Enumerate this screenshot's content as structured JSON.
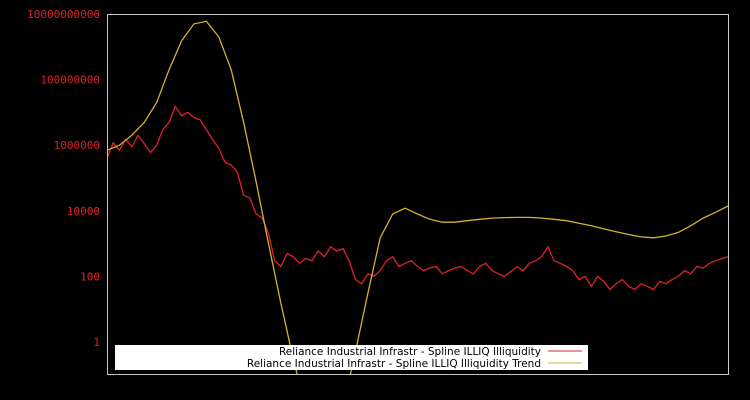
{
  "chart_data": {
    "type": "line",
    "title": "",
    "xlabel": "",
    "ylabel": "",
    "yscale": "log",
    "ylim": [
      0.3,
      10000000000
    ],
    "grid": false,
    "legend_position": "bottom-center-inside",
    "background": "#000000",
    "frame_color": "#c8c8c8",
    "yticks": [
      {
        "label": "10000000000",
        "value": 10000000000
      },
      {
        "label": "100000000",
        "value": 100000000
      },
      {
        "label": "1000000",
        "value": 1000000
      },
      {
        "label": "10000",
        "value": 10000
      },
      {
        "label": "100",
        "value": 100
      },
      {
        "label": "1",
        "value": 1
      }
    ],
    "series": [
      {
        "name": "Reliance Industrial Infrastr - Spline ILLIQ Illiquidity",
        "color": "#e0202a",
        "x_frac": [
          0.0,
          0.01,
          0.02,
          0.03,
          0.04,
          0.05,
          0.06,
          0.07,
          0.08,
          0.09,
          0.1,
          0.11,
          0.12,
          0.13,
          0.14,
          0.15,
          0.16,
          0.17,
          0.18,
          0.19,
          0.2,
          0.21,
          0.22,
          0.23,
          0.24,
          0.25,
          0.26,
          0.27,
          0.28,
          0.29,
          0.3,
          0.31,
          0.32,
          0.33,
          0.34,
          0.35,
          0.36,
          0.37,
          0.38,
          0.39,
          0.4,
          0.41,
          0.42,
          0.43,
          0.44,
          0.45,
          0.46,
          0.47,
          0.48,
          0.49,
          0.5,
          0.51,
          0.52,
          0.53,
          0.54,
          0.55,
          0.56,
          0.57,
          0.58,
          0.59,
          0.6,
          0.61,
          0.62,
          0.63,
          0.64,
          0.65,
          0.66,
          0.67,
          0.68,
          0.69,
          0.7,
          0.71,
          0.72,
          0.73,
          0.74,
          0.75,
          0.76,
          0.77,
          0.78,
          0.79,
          0.8,
          0.81,
          0.82,
          0.83,
          0.84,
          0.85,
          0.86,
          0.87,
          0.88,
          0.89,
          0.9,
          0.91,
          0.92,
          0.93,
          0.94,
          0.95,
          0.96,
          0.97,
          0.98,
          0.99,
          1.0
        ],
        "values": [
          400000,
          1200000,
          700000,
          1500000,
          900000,
          2000000,
          1100000,
          600000,
          1000000,
          3000000,
          5000000,
          15000000,
          8000000,
          10000000,
          7000000,
          6000000,
          3000000,
          1500000,
          800000,
          300000,
          250000,
          150000,
          30000,
          25000,
          8000,
          6000,
          2000,
          300,
          200,
          500,
          400,
          250,
          350,
          300,
          600,
          400,
          800,
          600,
          700,
          300,
          80,
          60,
          120,
          100,
          150,
          300,
          400,
          200,
          250,
          300,
          200,
          150,
          180,
          200,
          120,
          150,
          180,
          200,
          150,
          120,
          200,
          250,
          150,
          120,
          100,
          140,
          200,
          150,
          250,
          300,
          400,
          800,
          300,
          250,
          200,
          150,
          80,
          100,
          50,
          100,
          70,
          40,
          60,
          80,
          50,
          40,
          60,
          50,
          40,
          70,
          60,
          80,
          100,
          150,
          120,
          200,
          180,
          250,
          300,
          350,
          400
        ]
      },
      {
        "name": "Reliance Industrial Infrastr - Spline ILLIQ Illiquidity Trend",
        "color": "#d4b030",
        "x_frac": [
          0.0,
          0.02,
          0.04,
          0.06,
          0.08,
          0.1,
          0.12,
          0.14,
          0.16,
          0.18,
          0.2,
          0.22,
          0.24,
          0.26,
          0.28,
          0.3,
          0.32,
          0.34,
          0.36,
          0.38,
          0.4,
          0.42,
          0.44,
          0.46,
          0.48,
          0.5,
          0.52,
          0.54,
          0.56,
          0.58,
          0.6,
          0.62,
          0.64,
          0.66,
          0.68,
          0.7,
          0.72,
          0.74,
          0.76,
          0.78,
          0.8,
          0.82,
          0.84,
          0.86,
          0.88,
          0.9,
          0.92,
          0.94,
          0.96,
          0.98,
          1.0
        ],
        "values": [
          700000,
          1000000,
          2000000,
          5000000,
          20000000,
          200000000,
          1500000000,
          5000000000,
          6000000000,
          2000000000,
          200000000,
          5000000,
          80000,
          1000,
          15,
          0.3,
          0.01,
          0.01,
          0.01,
          0.01,
          0.5,
          30,
          1500,
          8000,
          12000,
          8000,
          5500,
          4500,
          4500,
          5000,
          5500,
          6000,
          6200,
          6300,
          6300,
          6000,
          5500,
          5000,
          4200,
          3500,
          2800,
          2300,
          1900,
          1600,
          1500,
          1700,
          2200,
          3500,
          6000,
          9000,
          14000
        ]
      }
    ]
  },
  "legend": {
    "items": [
      {
        "label": "Reliance Industrial Infrastr - Spline ILLIQ Illiquidity",
        "color": "#e0202a"
      },
      {
        "label": "Reliance Industrial Infrastr - Spline ILLIQ Illiquidity Trend",
        "color": "#d4b030"
      }
    ]
  }
}
